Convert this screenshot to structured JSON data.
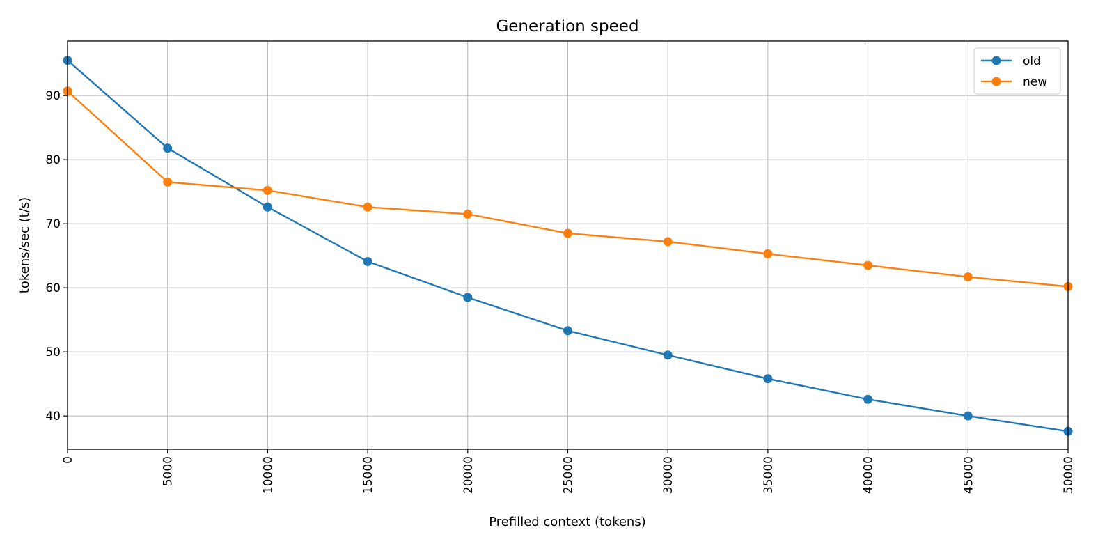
{
  "chart_data": {
    "type": "line",
    "title": "Generation speed",
    "xlabel": "Prefilled context (tokens)",
    "ylabel": "tokens/sec (t/s)",
    "x": [
      0,
      5000,
      10000,
      15000,
      20000,
      25000,
      30000,
      35000,
      40000,
      45000,
      50000
    ],
    "xlim": [
      0,
      50000
    ],
    "ylim": [
      34.8,
      98.5
    ],
    "xticks": [
      0,
      5000,
      10000,
      15000,
      20000,
      25000,
      30000,
      35000,
      40000,
      45000,
      50000
    ],
    "yticks": [
      40,
      50,
      60,
      70,
      80,
      90
    ],
    "grid": true,
    "legend_position": "top-right",
    "series": [
      {
        "name": "old",
        "color": "#1f77b4",
        "marker": "circle",
        "values": [
          95.5,
          81.8,
          72.6,
          64.1,
          58.5,
          53.3,
          49.5,
          45.8,
          42.6,
          40.0,
          37.6
        ]
      },
      {
        "name": "new",
        "color": "#ff7f0e",
        "marker": "circle",
        "values": [
          90.7,
          76.5,
          75.2,
          72.6,
          71.5,
          68.5,
          67.2,
          65.3,
          63.5,
          61.7,
          60.2
        ]
      }
    ]
  }
}
